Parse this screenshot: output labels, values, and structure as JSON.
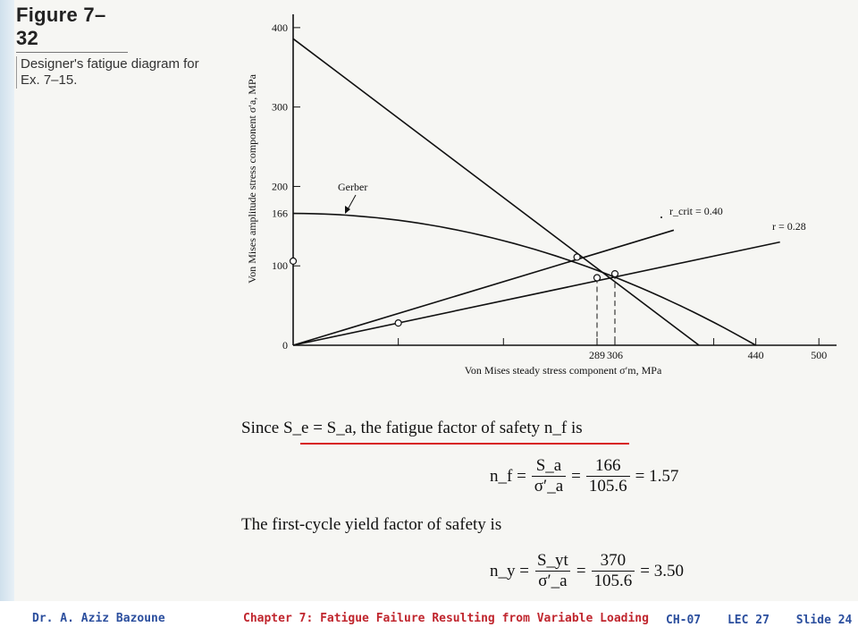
{
  "figure": {
    "number": "Figure 7–32",
    "description": "Designer's fatigue diagram for Ex. 7–15."
  },
  "chart_data": {
    "type": "line",
    "xlabel": "Von Mises steady stress component σ′m, MPa",
    "ylabel": "Von Mises amplitude stress component σ′a, MPa",
    "xlim": [
      0,
      510
    ],
    "ylim": [
      0,
      410
    ],
    "x_ticks": [
      "0",
      "289",
      "306",
      "440",
      "500"
    ],
    "y_ticks": [
      "0",
      "100",
      "166",
      "200",
      "300",
      "400"
    ],
    "annotations": {
      "gerber": "Gerber",
      "r_crit": "r_crit = 0.40",
      "r": "r = 0.28"
    },
    "series": [
      {
        "name": "Gerber",
        "x": [
          0,
          80,
          160,
          220,
          289,
          340,
          400,
          440
        ],
        "y": [
          166,
          161,
          145,
          127,
          95,
          67,
          29,
          0
        ]
      },
      {
        "name": "",
        "x": [
          0,
          386
        ],
        "y": [
          386,
          0
        ]
      },
      {
        "name": "r_crit = 0.40",
        "x": [
          0,
          362
        ],
        "y": [
          0,
          145
        ]
      },
      {
        "name": "r = 0.28",
        "x": [
          0,
          463
        ],
        "y": [
          0,
          130
        ]
      }
    ],
    "points": [
      {
        "x": 270,
        "y": 111
      },
      {
        "x": 289,
        "y": 85
      },
      {
        "x": 306,
        "y": 90
      },
      {
        "x": 100,
        "y": 28
      },
      {
        "x": 0,
        "y": 106
      }
    ],
    "colors": {
      "line": "#111111",
      "point_fill": "#ffffff"
    }
  },
  "text": {
    "since_line": "Since S_e = S_a, the fatigue factor of safety n_f is",
    "nf_lhs": "n_f =",
    "nf_num1": "S_a",
    "nf_den1": "σ′_a",
    "nf_num2": "166",
    "nf_den2": "105.6",
    "nf_result": "= 1.57",
    "yield_line": "The first-cycle yield factor of safety is",
    "ny_lhs": "n_y =",
    "ny_num1": "S_yt",
    "ny_den1": "σ′_a",
    "ny_num2": "370",
    "ny_den2": "105.6",
    "ny_result": "= 3.50"
  },
  "footer": {
    "author": "Dr. A. Aziz Bazoune",
    "chapter": "Chapter 7: Fatigue Failure Resulting from Variable Loading",
    "ch": "CH-07",
    "lec": "LEC 27",
    "slide": "Slide 24"
  },
  "colors": {
    "underline": "#d81e1e",
    "footer_blue": "#2c4f9e",
    "footer_red": "#c0262e"
  }
}
